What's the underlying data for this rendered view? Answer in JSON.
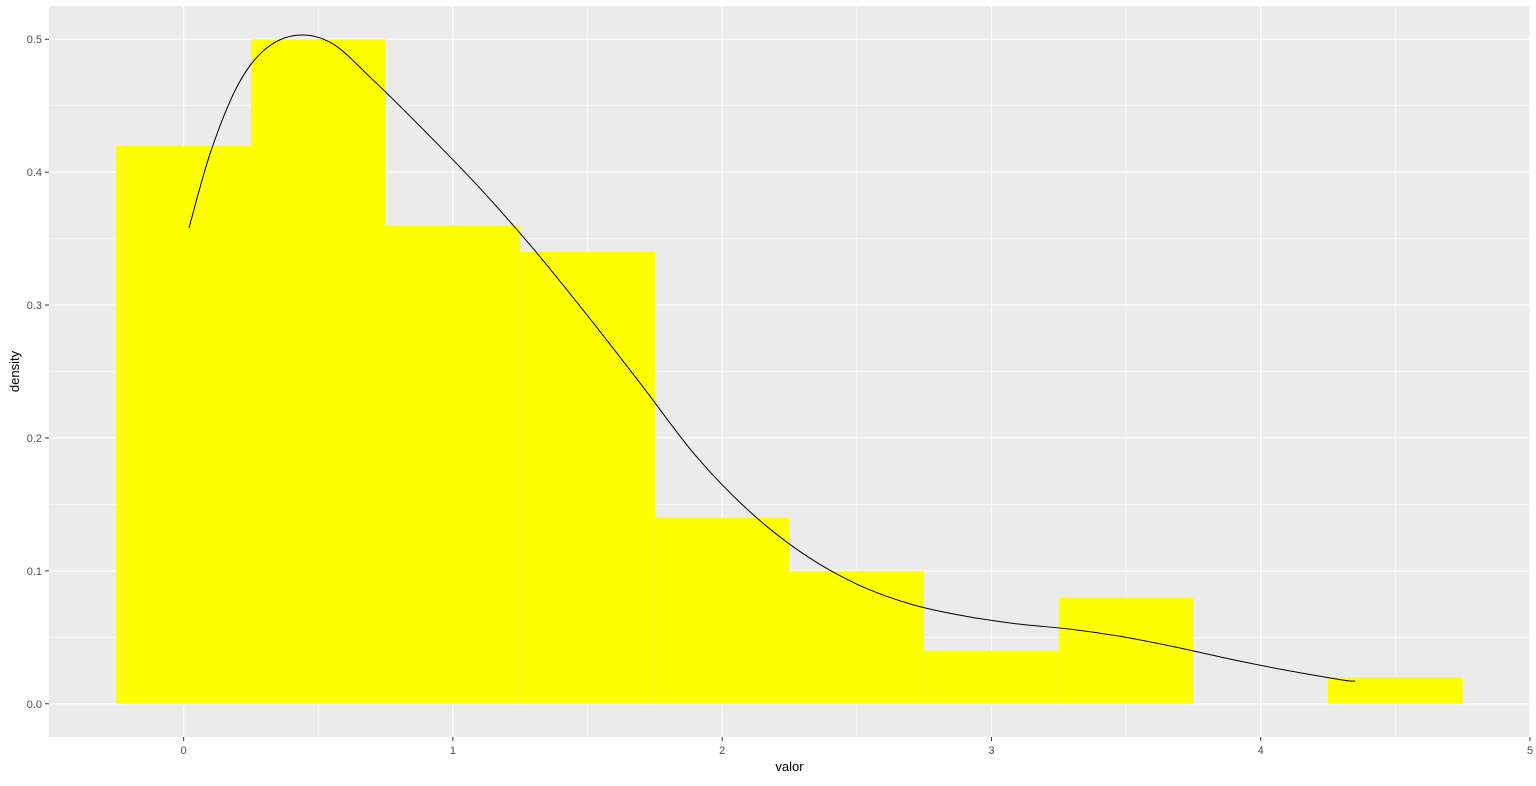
{
  "chart_data": {
    "type": "bar",
    "xlabel": "valor",
    "ylabel": "density",
    "xlim": [
      -0.5,
      5
    ],
    "ylim": [
      -0.025,
      0.525
    ],
    "x_ticks": [
      "0",
      "1",
      "2",
      "3",
      "4",
      "5"
    ],
    "x_tick_values": [
      0,
      1,
      2,
      3,
      4,
      5
    ],
    "y_ticks": [
      "0.0",
      "0.1",
      "0.2",
      "0.3",
      "0.4",
      "0.5"
    ],
    "y_tick_values": [
      0.0,
      0.1,
      0.2,
      0.3,
      0.4,
      0.5
    ],
    "grid": true,
    "histogram": {
      "fill": "#FFFF00",
      "bins": [
        {
          "x0": -0.25,
          "x1": 0.25,
          "density": 0.42
        },
        {
          "x0": 0.25,
          "x1": 0.75,
          "density": 0.5
        },
        {
          "x0": 0.75,
          "x1": 1.25,
          "density": 0.36
        },
        {
          "x0": 1.25,
          "x1": 1.75,
          "density": 0.34
        },
        {
          "x0": 1.75,
          "x1": 2.25,
          "density": 0.14
        },
        {
          "x0": 2.25,
          "x1": 2.75,
          "density": 0.1
        },
        {
          "x0": 2.75,
          "x1": 3.25,
          "density": 0.04
        },
        {
          "x0": 3.25,
          "x1": 3.75,
          "density": 0.08
        },
        {
          "x0": 3.75,
          "x1": 4.25,
          "density": 0.0
        },
        {
          "x0": 4.25,
          "x1": 4.75,
          "density": 0.02
        }
      ]
    },
    "density_curve": {
      "color": "#000000",
      "x": [
        0.02,
        0.1,
        0.2,
        0.3,
        0.42,
        0.55,
        0.7,
        0.9,
        1.1,
        1.3,
        1.5,
        1.7,
        1.9,
        2.1,
        2.3,
        2.5,
        2.7,
        2.9,
        3.1,
        3.3,
        3.5,
        3.7,
        3.9,
        4.1,
        4.3,
        4.35
      ],
      "y": [
        0.358,
        0.415,
        0.465,
        0.492,
        0.503,
        0.497,
        0.47,
        0.43,
        0.388,
        0.342,
        0.292,
        0.24,
        0.187,
        0.145,
        0.113,
        0.09,
        0.075,
        0.066,
        0.06,
        0.056,
        0.05,
        0.042,
        0.033,
        0.025,
        0.018,
        0.017
      ]
    },
    "colors": {
      "panel_background": "#EBEBEB",
      "grid_line": "#FFFFFF",
      "bar_fill": "#FFFF00",
      "curve": "#000000"
    }
  }
}
